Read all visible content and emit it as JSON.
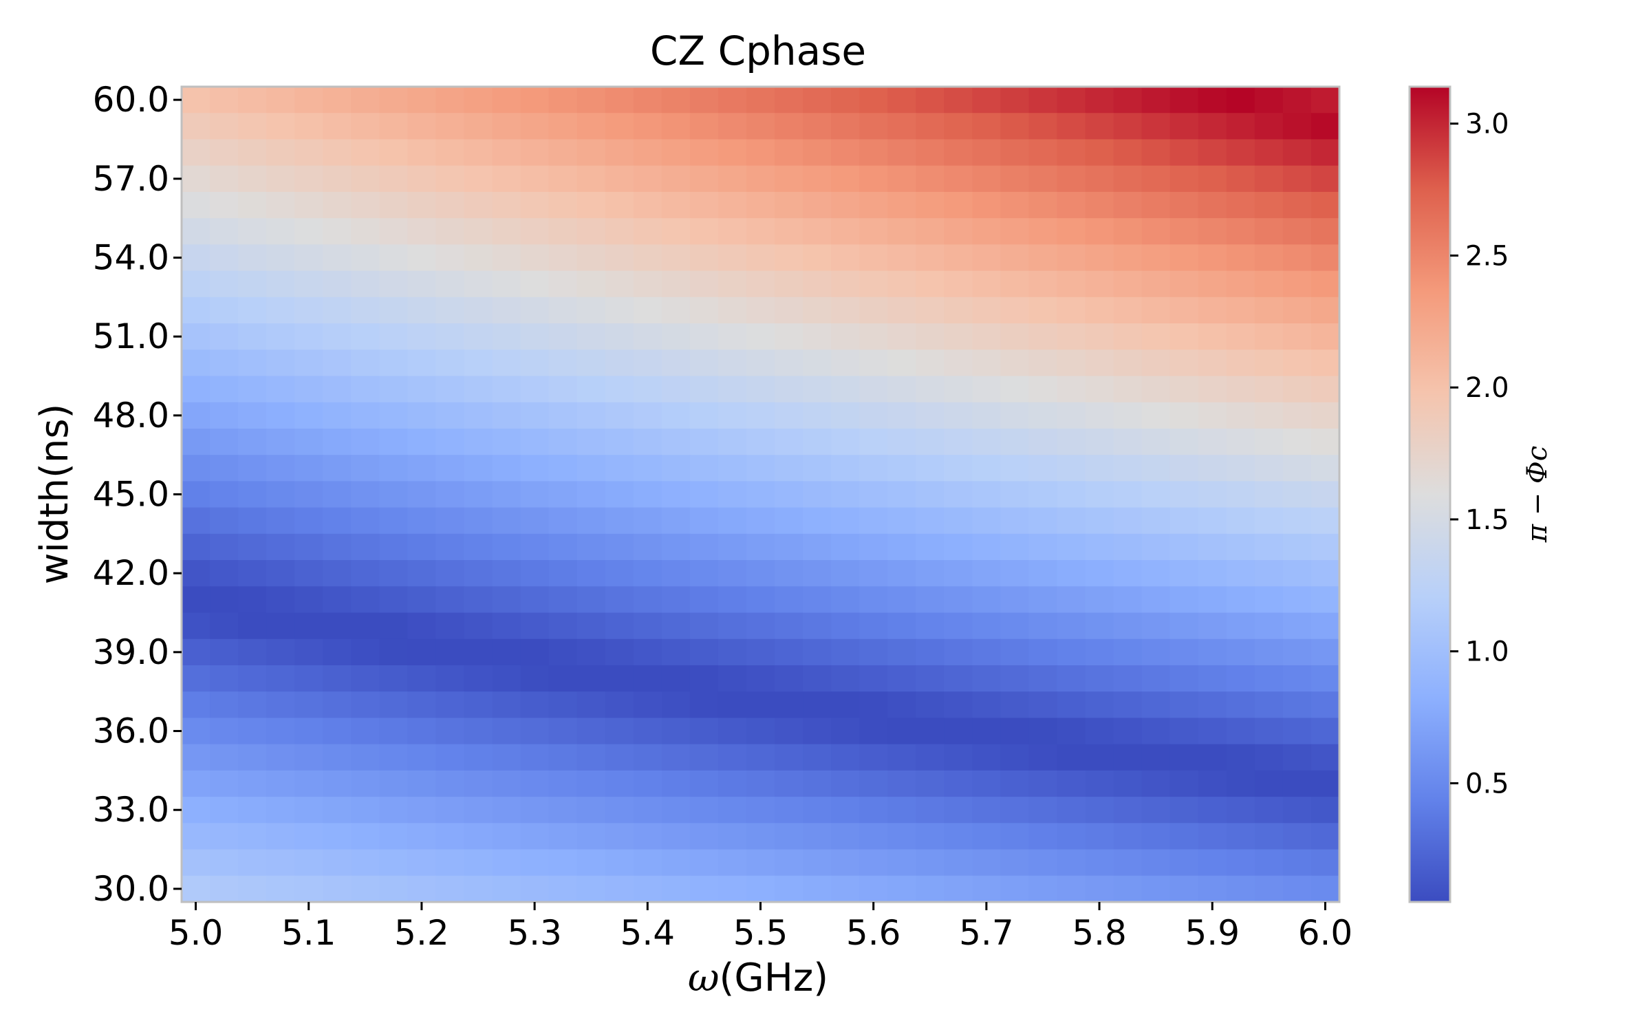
{
  "chart_data": {
    "type": "heatmap",
    "title": "CZ Cphase",
    "xlabel_symbol": "ω",
    "xlabel_unit": "(GHz)",
    "ylabel": "width(ns)",
    "colorbar_label": "π − Φc",
    "x_ticks": [
      "5.0",
      "5.1",
      "5.2",
      "5.3",
      "5.4",
      "5.5",
      "5.6",
      "5.7",
      "5.8",
      "5.9",
      "6.0"
    ],
    "y_ticks": [
      "30.0",
      "33.0",
      "36.0",
      "39.0",
      "42.0",
      "45.0",
      "48.0",
      "51.0",
      "54.0",
      "57.0",
      "60.0"
    ],
    "colorbar_ticks": [
      "0.5",
      "1.0",
      "1.5",
      "2.0",
      "2.5",
      "3.0"
    ],
    "colorbar_tick_values": [
      0.5,
      1.0,
      1.5,
      2.0,
      2.5,
      3.0
    ],
    "colorbar_range": [
      0.05,
      3.14
    ],
    "colormap": "coolwarm",
    "x_range": [
      5.0,
      6.0
    ],
    "x_cells": 41,
    "y_range": [
      30.0,
      60.0
    ],
    "y_cells": 31,
    "value_model": "v = π − min(|(k − ω·w/Λ) mod 2π|, 2π − ...); ω in GHz, w in ns, k≈7.4, Λ≈48",
    "model_params": {
      "k": 7.4,
      "lambda": 48.0
    }
  }
}
